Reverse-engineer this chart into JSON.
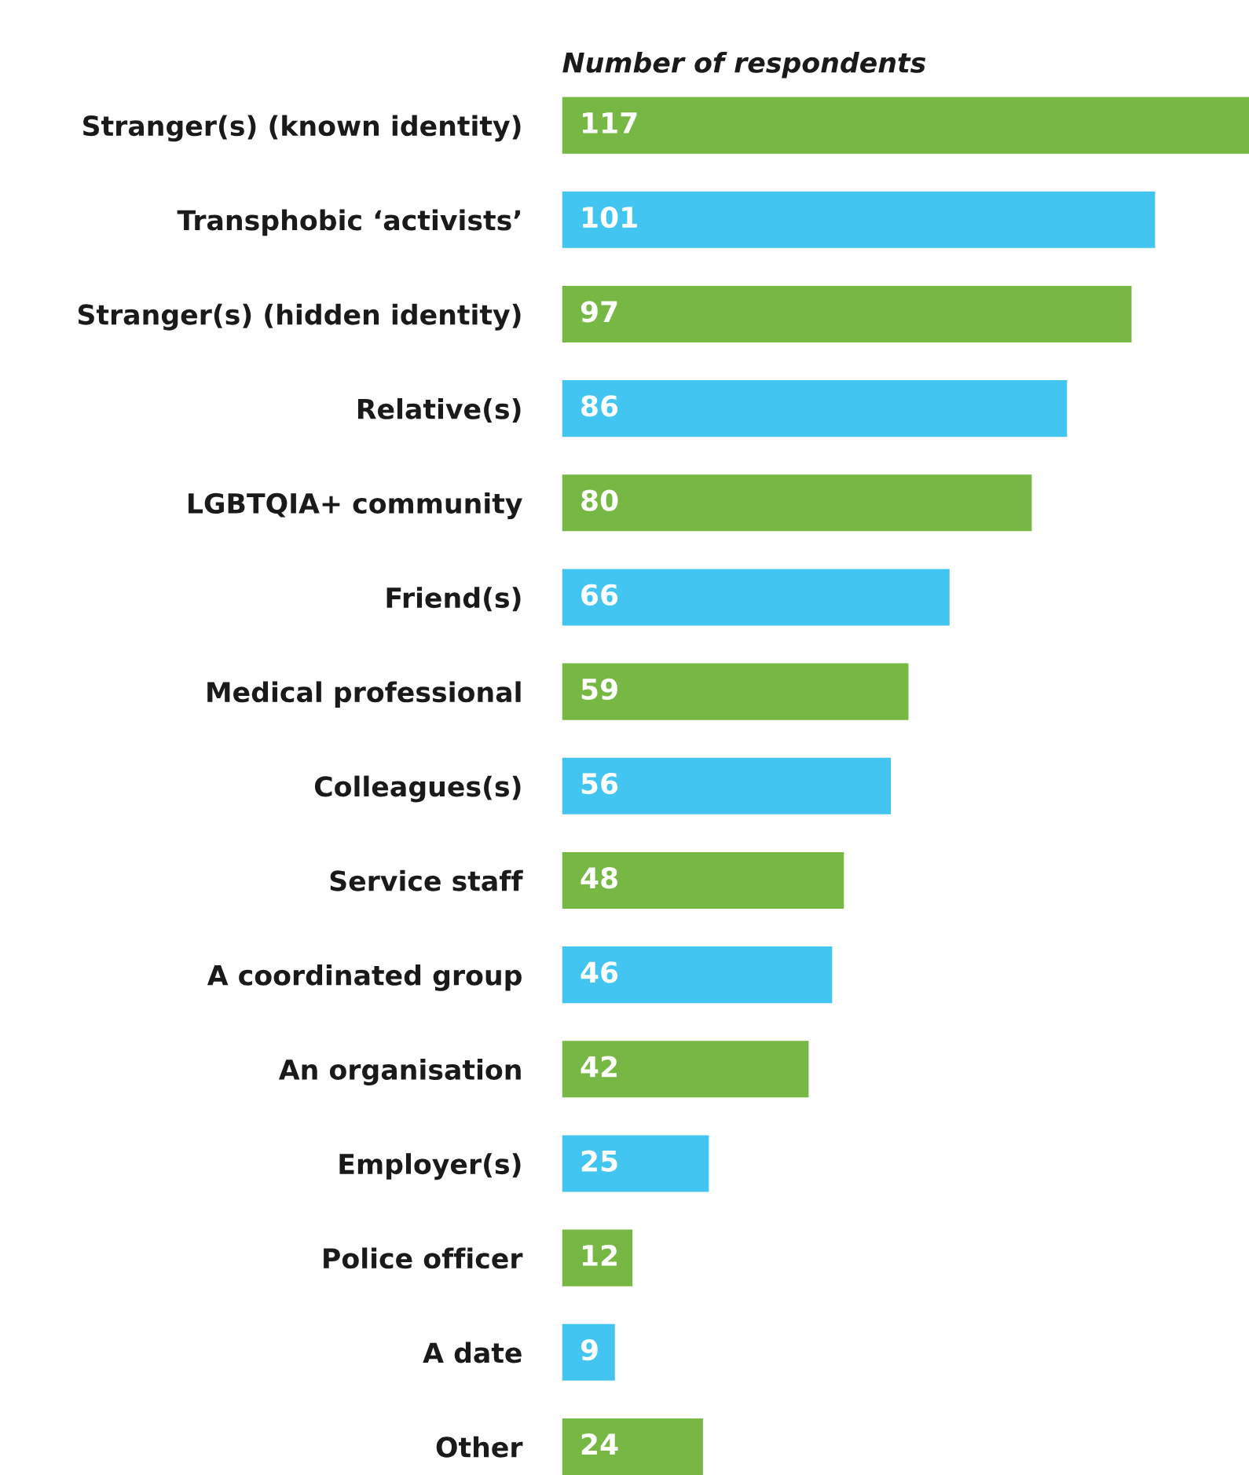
{
  "chart_data": {
    "type": "bar",
    "orientation": "horizontal",
    "title": "Number of respondents",
    "categories": [
      "Stranger(s) (known identity)",
      "Transphobic ‘activists’",
      "Stranger(s) (hidden identity)",
      "Relative(s)",
      "LGBTQIA+ community",
      "Friend(s)",
      "Medical professional",
      "Colleagues(s)",
      "Service staff",
      "A coordinated group",
      "An organisation",
      "Employer(s)",
      "Police officer",
      "A date",
      "Other"
    ],
    "values": [
      117,
      101,
      97,
      86,
      80,
      66,
      59,
      56,
      48,
      46,
      42,
      25,
      12,
      9,
      24
    ],
    "colors": [
      "#76b843",
      "#42c5f0",
      "#76b843",
      "#42c5f0",
      "#76b843",
      "#42c5f0",
      "#76b843",
      "#42c5f0",
      "#76b843",
      "#42c5f0",
      "#76b843",
      "#42c5f0",
      "#76b843",
      "#42c5f0",
      "#76b843"
    ],
    "data_labels": true
  }
}
